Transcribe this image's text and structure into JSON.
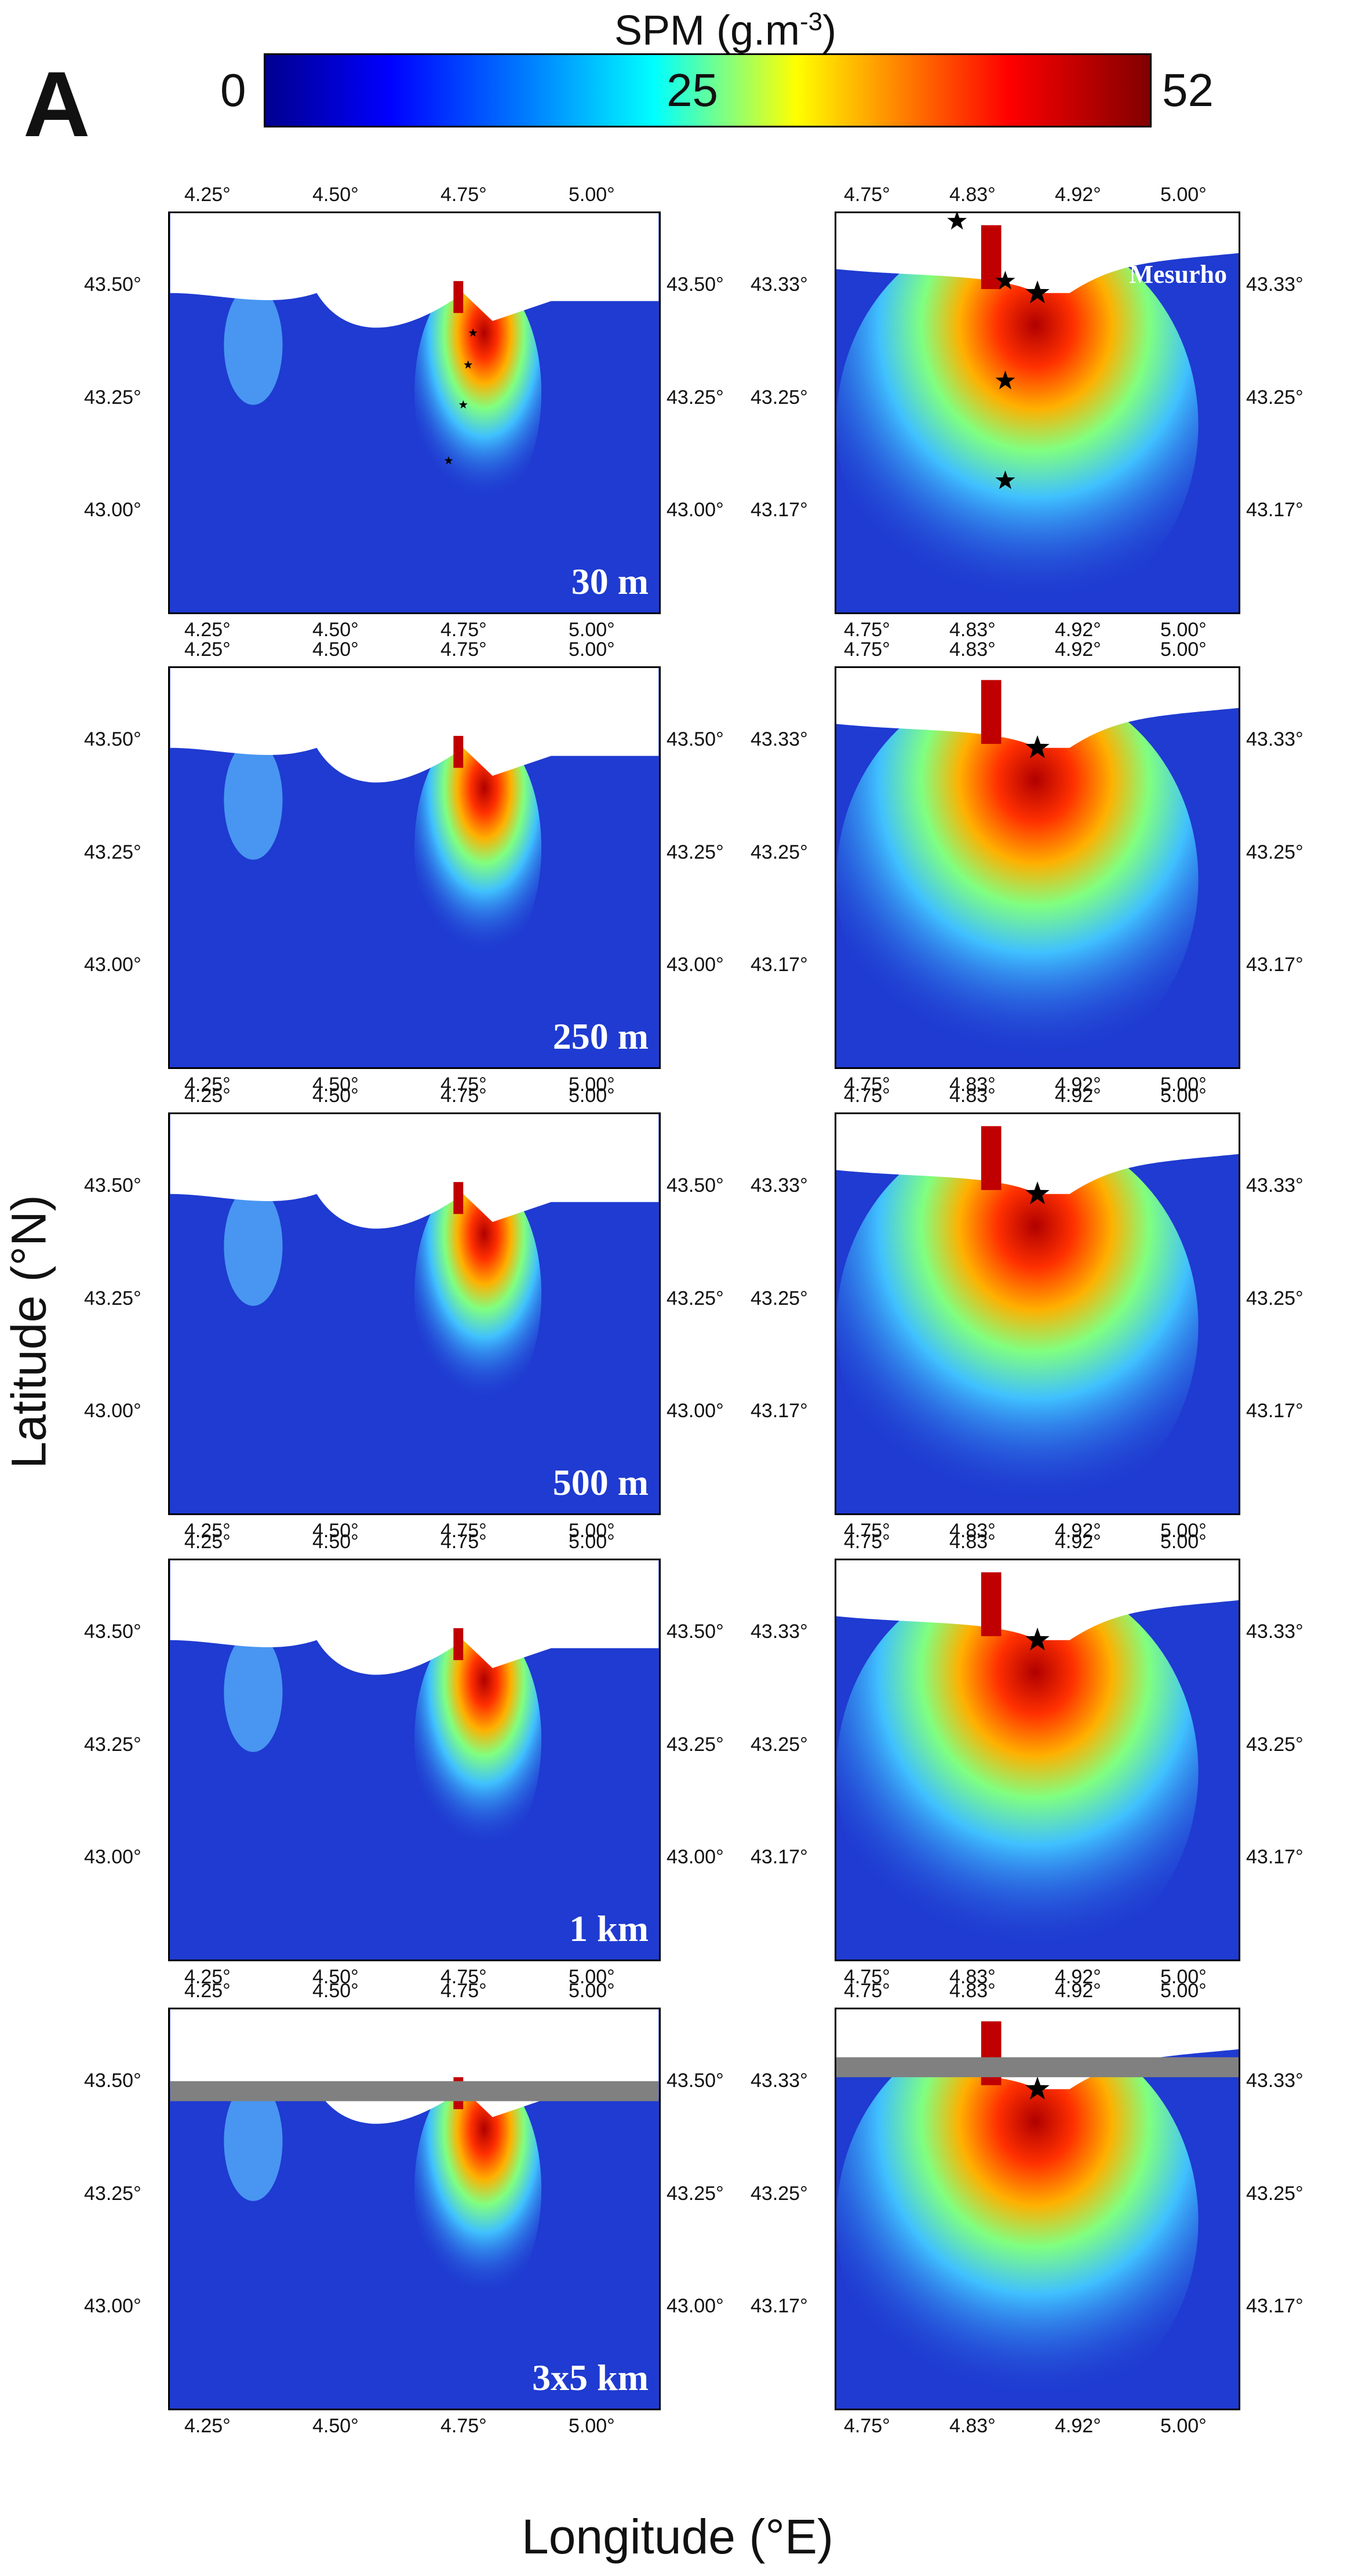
{
  "panel_label": "A",
  "colorbar": {
    "title": "SPM (g.m",
    "title_sup": "-3",
    "title_end": ")",
    "min": "0",
    "mid": "25",
    "max": "52"
  },
  "axes": {
    "ylabel": "Latitude (°N)",
    "xlabel": "Longitude (°E)"
  },
  "left_ticks": {
    "x": [
      "4.25°",
      "4.50°",
      "4.75°",
      "5.00°"
    ],
    "y": [
      "43.50°",
      "43.25°",
      "43.00°"
    ]
  },
  "right_ticks": {
    "x": [
      "4.75°",
      "4.83°",
      "4.92°",
      "5.00°"
    ],
    "y": [
      "43.33°",
      "43.25°",
      "43.17°"
    ]
  },
  "resolutions": [
    "30 m",
    "250 m",
    "500 m",
    "1 km",
    "3x5 km"
  ],
  "station_label": "Mesurho",
  "colors": {
    "sea": "#1f3bd1",
    "plume_core": "#c00000",
    "land": "#ffffff",
    "missing": "#808080"
  }
}
